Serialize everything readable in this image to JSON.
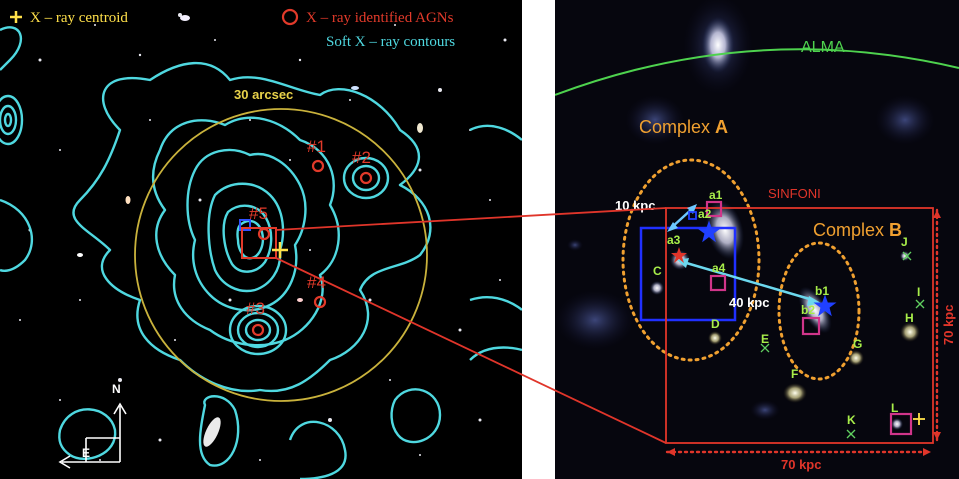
{
  "left_panel": {
    "legend": {
      "centroid_label": "X – ray centroid",
      "agn_label": "X – ray identified AGNs",
      "contours_label": "Soft X – ray contours"
    },
    "circle_label": "30 arcsec",
    "agn_labels": [
      "#1",
      "#2",
      "#3",
      "#4",
      "#5"
    ],
    "compass": {
      "north": "N",
      "east": "E"
    },
    "colors": {
      "contour": "#4fd8e0",
      "agn": "#e23a2a",
      "circle": "#c9b23c",
      "centroid": "#ffe04a"
    }
  },
  "right_panel": {
    "alma_label": "ALMA",
    "complex_a_prefix": "Complex ",
    "complex_a_letter": "A",
    "complex_b_prefix": "Complex ",
    "complex_b_letter": "B",
    "sinfoni_label": "SINFONI",
    "scale_10": "10 kpc",
    "scale_40": "40 kpc",
    "scale_70_h": "70 kpc",
    "scale_70_v": "70 kpc",
    "source_labels": {
      "a1": "a1",
      "a2": "a2",
      "a3": "a3",
      "a4": "a4",
      "b1": "b1",
      "b2": "b2",
      "C": "C",
      "D": "D",
      "E": "E",
      "F": "F",
      "G": "G",
      "H": "H",
      "I": "I",
      "J": "J",
      "K": "K",
      "L": "L"
    },
    "colors": {
      "alma": "#4ed24e",
      "complex": "#f0a030",
      "sinfoni": "#e0352a",
      "label_green": "#a8ee4a",
      "box_blue": "#2030ff",
      "magenta": "#d0358a"
    }
  }
}
